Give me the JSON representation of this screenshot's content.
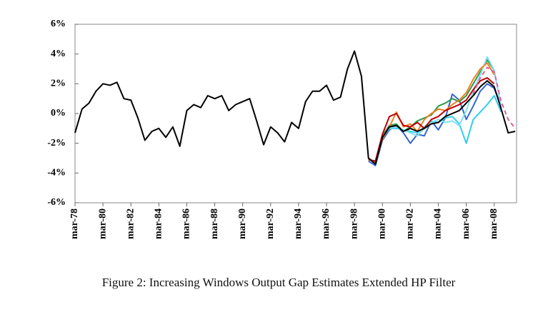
{
  "chart_data": {
    "type": "line",
    "caption": "Figure 2: Increasing Windows Output Gap Estimates Extended HP Filter",
    "x": [
      1978,
      1978.5,
      1979,
      1979.5,
      1980,
      1980.5,
      1981,
      1981.5,
      1982,
      1982.5,
      1983,
      1983.5,
      1984,
      1984.5,
      1985,
      1985.5,
      1986,
      1986.5,
      1987,
      1987.5,
      1988,
      1988.5,
      1989,
      1989.5,
      1990,
      1990.5,
      1991,
      1991.5,
      1992,
      1992.5,
      1993,
      1993.5,
      1994,
      1994.5,
      1995,
      1995.5,
      1996,
      1996.5,
      1997,
      1997.5,
      1998,
      1998.5,
      1999,
      1999.5,
      2000,
      2000.5,
      2001,
      2001.5,
      2002,
      2002.5,
      2003,
      2003.5,
      2004,
      2004.5,
      2005,
      2005.5,
      2006,
      2006.5,
      2007,
      2007.5,
      2008,
      2008.5,
      2009,
      2009.5
    ],
    "xlim": [
      1978,
      2009.6
    ],
    "xticks": [
      {
        "value": 1978,
        "label": "mar-78"
      },
      {
        "value": 1980,
        "label": "mar-80"
      },
      {
        "value": 1982,
        "label": "mar-82"
      },
      {
        "value": 1984,
        "label": "mar-84"
      },
      {
        "value": 1986,
        "label": "mar-86"
      },
      {
        "value": 1988,
        "label": "mar-88"
      },
      {
        "value": 1990,
        "label": "mar-90"
      },
      {
        "value": 1992,
        "label": "mar-92"
      },
      {
        "value": 1994,
        "label": "mar-94"
      },
      {
        "value": 1996,
        "label": "mar-96"
      },
      {
        "value": 1998,
        "label": "mar-98"
      },
      {
        "value": 2000,
        "label": "mar-00"
      },
      {
        "value": 2002,
        "label": "mar-02"
      },
      {
        "value": 2004,
        "label": "mar-04"
      },
      {
        "value": 2006,
        "label": "mar-06"
      },
      {
        "value": 2008,
        "label": "mar-08"
      }
    ],
    "ylim": [
      -6,
      6
    ],
    "yticks": [
      {
        "value": -6,
        "label": "-6%"
      },
      {
        "value": -4,
        "label": "-4%"
      },
      {
        "value": -2,
        "label": "-2%"
      },
      {
        "value": 0,
        "label": "0%"
      },
      {
        "value": 2,
        "label": "2%"
      },
      {
        "value": 4,
        "label": "4%"
      },
      {
        "value": 6,
        "label": "6%"
      }
    ],
    "series": [
      {
        "color": "#3366cc",
        "values": [
          null,
          null,
          null,
          null,
          null,
          null,
          null,
          null,
          null,
          null,
          null,
          null,
          null,
          null,
          null,
          null,
          null,
          null,
          null,
          null,
          null,
          null,
          null,
          null,
          null,
          null,
          null,
          null,
          null,
          null,
          null,
          null,
          null,
          null,
          null,
          null,
          null,
          null,
          null,
          null,
          null,
          null,
          -3.2,
          -3.5,
          -1.8,
          -1.1,
          -0.8,
          -1.3,
          -2.0,
          -1.4,
          -1.5,
          -0.5,
          -1.1,
          -0.3,
          1.3,
          0.9,
          -0.4,
          0.5,
          1.5,
          2.0,
          1.7,
          0.5,
          null,
          null
        ]
      },
      {
        "color": "#33ccee",
        "values": [
          null,
          null,
          null,
          null,
          null,
          null,
          null,
          null,
          null,
          null,
          null,
          null,
          null,
          null,
          null,
          null,
          null,
          null,
          null,
          null,
          null,
          null,
          null,
          null,
          null,
          null,
          null,
          null,
          null,
          null,
          null,
          null,
          null,
          null,
          null,
          null,
          null,
          null,
          null,
          null,
          null,
          null,
          -3.0,
          -3.3,
          -1.6,
          -1.0,
          -1.0,
          -1.1,
          -1.2,
          -1.3,
          -0.9,
          -0.5,
          -0.6,
          -0.3,
          -0.2,
          -0.7,
          -2.0,
          -0.4,
          0.1,
          0.6,
          1.2,
          0.1,
          null,
          null
        ]
      },
      {
        "color": "#2a9a4a",
        "values": [
          null,
          null,
          null,
          null,
          null,
          null,
          null,
          null,
          null,
          null,
          null,
          null,
          null,
          null,
          null,
          null,
          null,
          null,
          null,
          null,
          null,
          null,
          null,
          null,
          null,
          null,
          null,
          null,
          null,
          null,
          null,
          null,
          null,
          null,
          null,
          null,
          null,
          null,
          null,
          null,
          null,
          null,
          -3.1,
          -3.2,
          -1.5,
          -0.8,
          -0.7,
          -1.2,
          -0.9,
          -0.5,
          -0.3,
          -0.1,
          0.5,
          0.7,
          1.0,
          0.8,
          1.2,
          2.0,
          2.8,
          3.6,
          2.9,
          null,
          null,
          null
        ]
      },
      {
        "color": "#7fe0f0",
        "values": [
          null,
          null,
          null,
          null,
          null,
          null,
          null,
          null,
          null,
          null,
          null,
          null,
          null,
          null,
          null,
          null,
          null,
          null,
          null,
          null,
          null,
          null,
          null,
          null,
          null,
          null,
          null,
          null,
          null,
          null,
          null,
          null,
          null,
          null,
          null,
          null,
          null,
          null,
          null,
          null,
          null,
          null,
          -3.0,
          -3.4,
          -1.5,
          -1.0,
          -0.9,
          -1.1,
          -1.3,
          -1.5,
          -1.0,
          -0.6,
          -0.4,
          -0.6,
          -0.5,
          -0.8,
          0.2,
          1.5,
          2.6,
          3.8,
          2.9,
          0.4,
          null,
          null
        ]
      },
      {
        "color": "#f08020",
        "values": [
          null,
          null,
          null,
          null,
          null,
          null,
          null,
          null,
          null,
          null,
          null,
          null,
          null,
          null,
          null,
          null,
          null,
          null,
          null,
          null,
          null,
          null,
          null,
          null,
          null,
          null,
          null,
          null,
          null,
          null,
          null,
          null,
          null,
          null,
          null,
          null,
          null,
          null,
          null,
          null,
          null,
          null,
          -3.0,
          -3.3,
          -1.7,
          -0.9,
          0.1,
          -0.9,
          -0.7,
          -1.2,
          -0.4,
          0.0,
          0.3,
          0.2,
          0.6,
          0.9,
          1.4,
          2.3,
          3.0,
          3.4,
          2.6,
          null,
          null,
          null
        ]
      },
      {
        "color": "#c00000",
        "values": [
          null,
          null,
          null,
          null,
          null,
          null,
          null,
          null,
          null,
          null,
          null,
          null,
          null,
          null,
          null,
          null,
          null,
          null,
          null,
          null,
          null,
          null,
          null,
          null,
          null,
          null,
          null,
          null,
          null,
          null,
          null,
          null,
          null,
          null,
          null,
          null,
          null,
          null,
          null,
          null,
          null,
          null,
          -3.1,
          -3.2,
          -1.4,
          -0.2,
          0.0,
          -0.8,
          -0.9,
          -0.6,
          -1.0,
          -0.4,
          -0.2,
          0.2,
          0.4,
          0.6,
          0.9,
          1.6,
          2.2,
          2.4,
          2.0,
          null,
          null,
          null
        ]
      },
      {
        "color": "#e060a0",
        "dashed": true,
        "values": [
          null,
          null,
          null,
          null,
          null,
          null,
          null,
          null,
          null,
          null,
          null,
          null,
          null,
          null,
          null,
          null,
          null,
          null,
          null,
          null,
          null,
          null,
          null,
          null,
          null,
          null,
          null,
          null,
          null,
          null,
          null,
          null,
          null,
          null,
          null,
          null,
          null,
          null,
          null,
          null,
          null,
          null,
          null,
          null,
          null,
          null,
          null,
          null,
          null,
          null,
          null,
          null,
          null,
          null,
          null,
          null,
          null,
          1.3,
          2.4,
          3.1,
          2.8,
          0.8,
          -0.4,
          -1.0
        ]
      },
      {
        "color": "#000000",
        "values": [
          -1.3,
          0.3,
          0.7,
          1.5,
          2.0,
          1.9,
          2.1,
          1.0,
          0.9,
          -0.3,
          -1.8,
          -1.2,
          -1.0,
          -1.6,
          -0.9,
          -2.2,
          0.2,
          0.6,
          0.4,
          1.2,
          1.0,
          1.2,
          0.2,
          0.6,
          0.8,
          1.0,
          -0.5,
          -2.1,
          -0.9,
          -1.3,
          -1.9,
          -0.6,
          -1.0,
          0.8,
          1.5,
          1.5,
          1.9,
          0.9,
          1.1,
          3.0,
          4.2,
          2.5,
          -3.0,
          -3.4,
          -1.6,
          -0.9,
          -0.8,
          -1.2,
          -1.0,
          -1.2,
          -1.0,
          -0.7,
          -0.6,
          -0.2,
          0.0,
          0.2,
          0.7,
          1.2,
          1.8,
          2.2,
          1.8,
          0.3,
          -1.3,
          -1.2
        ]
      }
    ]
  }
}
